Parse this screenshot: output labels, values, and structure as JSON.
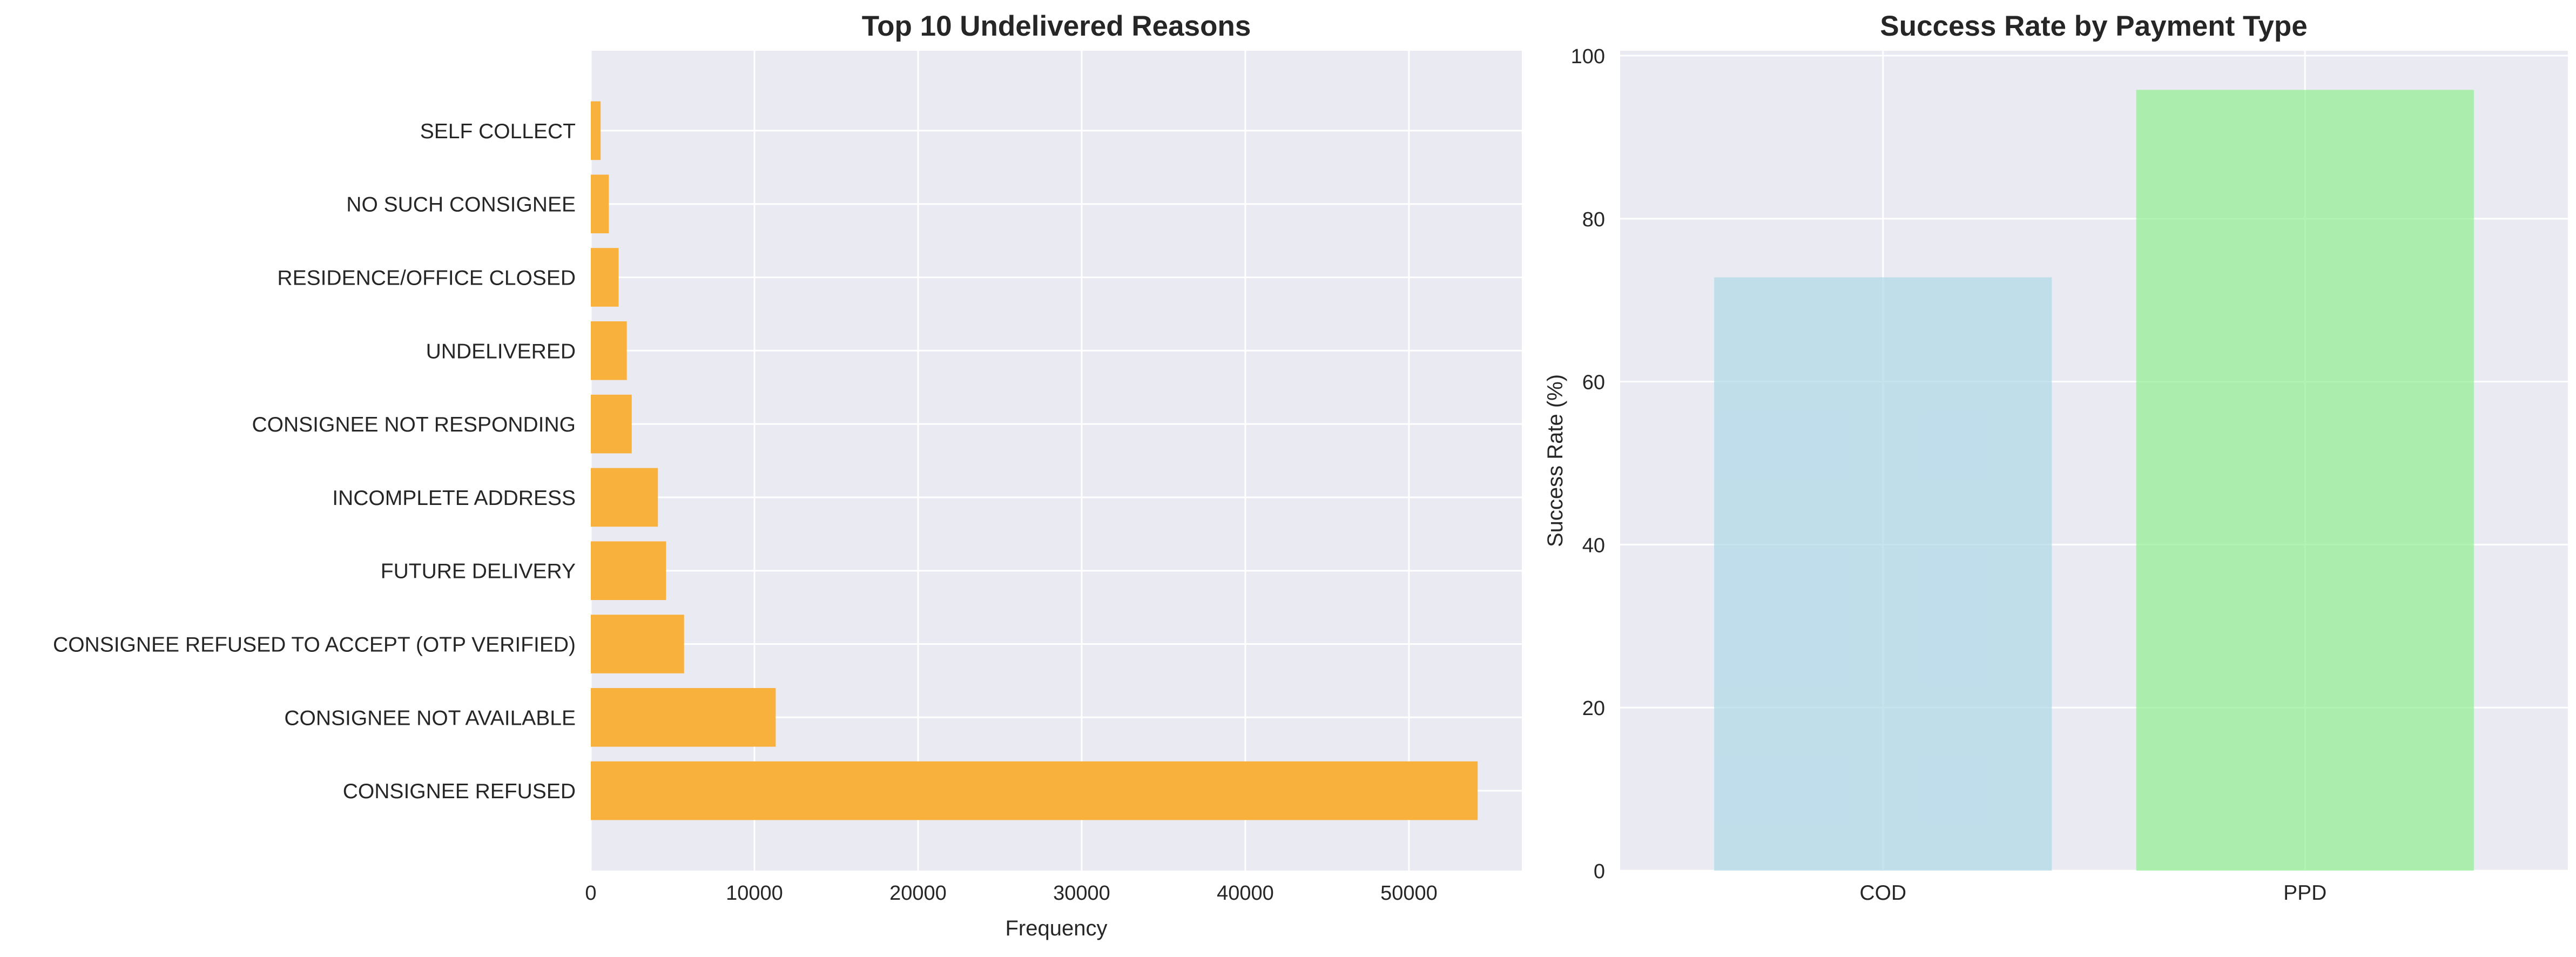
{
  "colors": {
    "axes_bg": "#eaeaf2",
    "grid": "#ffffff",
    "text": "#262626",
    "left_bar": "#f9b13d",
    "cod_bar": "#add8e6",
    "ppd_bar": "#90ee90"
  },
  "chart_data": [
    {
      "type": "bar",
      "orientation": "horizontal",
      "title": "Top 10 Undelivered Reasons",
      "xlabel": "Frequency",
      "ylabel": "",
      "categories": [
        "CONSIGNEE REFUSED",
        "CONSIGNEE NOT AVAILABLE",
        "CONSIGNEE REFUSED TO ACCEPT (OTP VERIFIED)",
        "FUTURE DELIVERY",
        "INCOMPLETE ADDRESS",
        "CONSIGNEE NOT RESPONDING",
        "UNDELIVERED",
        "RESIDENCE/OFFICE CLOSED",
        "NO SUCH CONSIGNEE",
        "SELF COLLECT"
      ],
      "values": [
        54200,
        11300,
        5700,
        4600,
        4100,
        2500,
        2200,
        1700,
        1100,
        600
      ],
      "xlim": [
        0,
        56900
      ],
      "xticks": [
        0,
        10000,
        20000,
        30000,
        40000,
        50000
      ],
      "grid": true,
      "legend": "none"
    },
    {
      "type": "bar",
      "orientation": "vertical",
      "title": "Success Rate by Payment Type",
      "xlabel": "",
      "ylabel": "Success Rate (%)",
      "categories": [
        "COD",
        "PPD"
      ],
      "values": [
        72.8,
        95.8
      ],
      "ylim": [
        0,
        100.6
      ],
      "yticks": [
        0,
        20,
        40,
        60,
        80,
        100
      ],
      "grid": true,
      "legend": "none"
    }
  ]
}
